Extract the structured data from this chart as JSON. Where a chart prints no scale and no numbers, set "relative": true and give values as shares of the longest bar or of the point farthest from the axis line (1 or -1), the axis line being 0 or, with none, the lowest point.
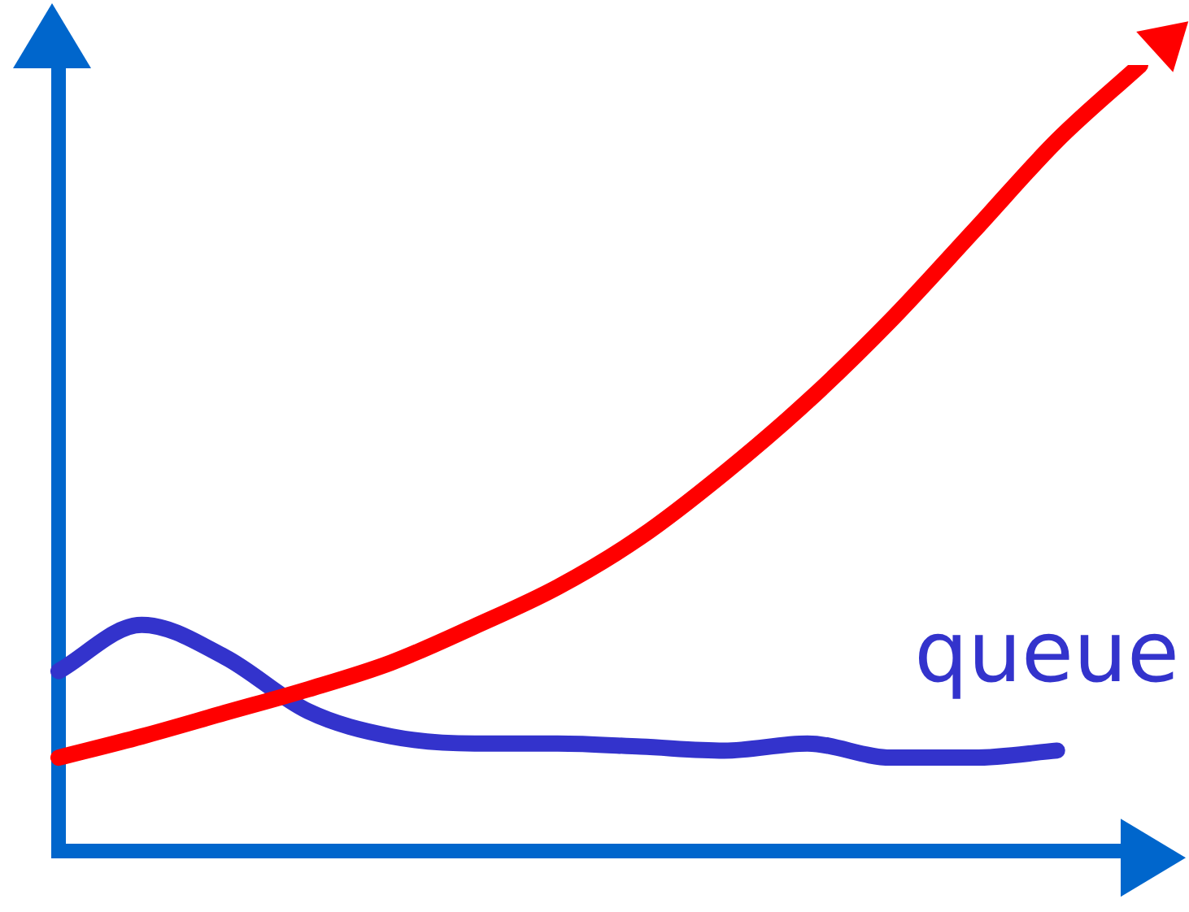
{
  "chart_data": {
    "type": "line",
    "relative": true,
    "categories": [
      null,
      null,
      null,
      null,
      null,
      null,
      null,
      null,
      null,
      null,
      null,
      null,
      null,
      null
    ],
    "series": [
      {
        "color": "#ff0000",
        "values": [
          0.119,
          0.146,
          0.176,
          0.206,
          0.24,
          0.286,
          0.336,
          0.4,
          0.481,
          0.572,
          0.675,
          0.789,
          0.904,
          1
        ]
      },
      {
        "name": "queue",
        "color": "#3333cc",
        "values": [
          0.229,
          0.288,
          0.247,
          0.178,
          0.146,
          0.137,
          0.137,
          0.133,
          0.128,
          0.137,
          0.119,
          0.119,
          0.128,
          null
        ]
      }
    ],
    "grid": false,
    "legend": false,
    "marker": "none",
    "line_style": "solid"
  }
}
